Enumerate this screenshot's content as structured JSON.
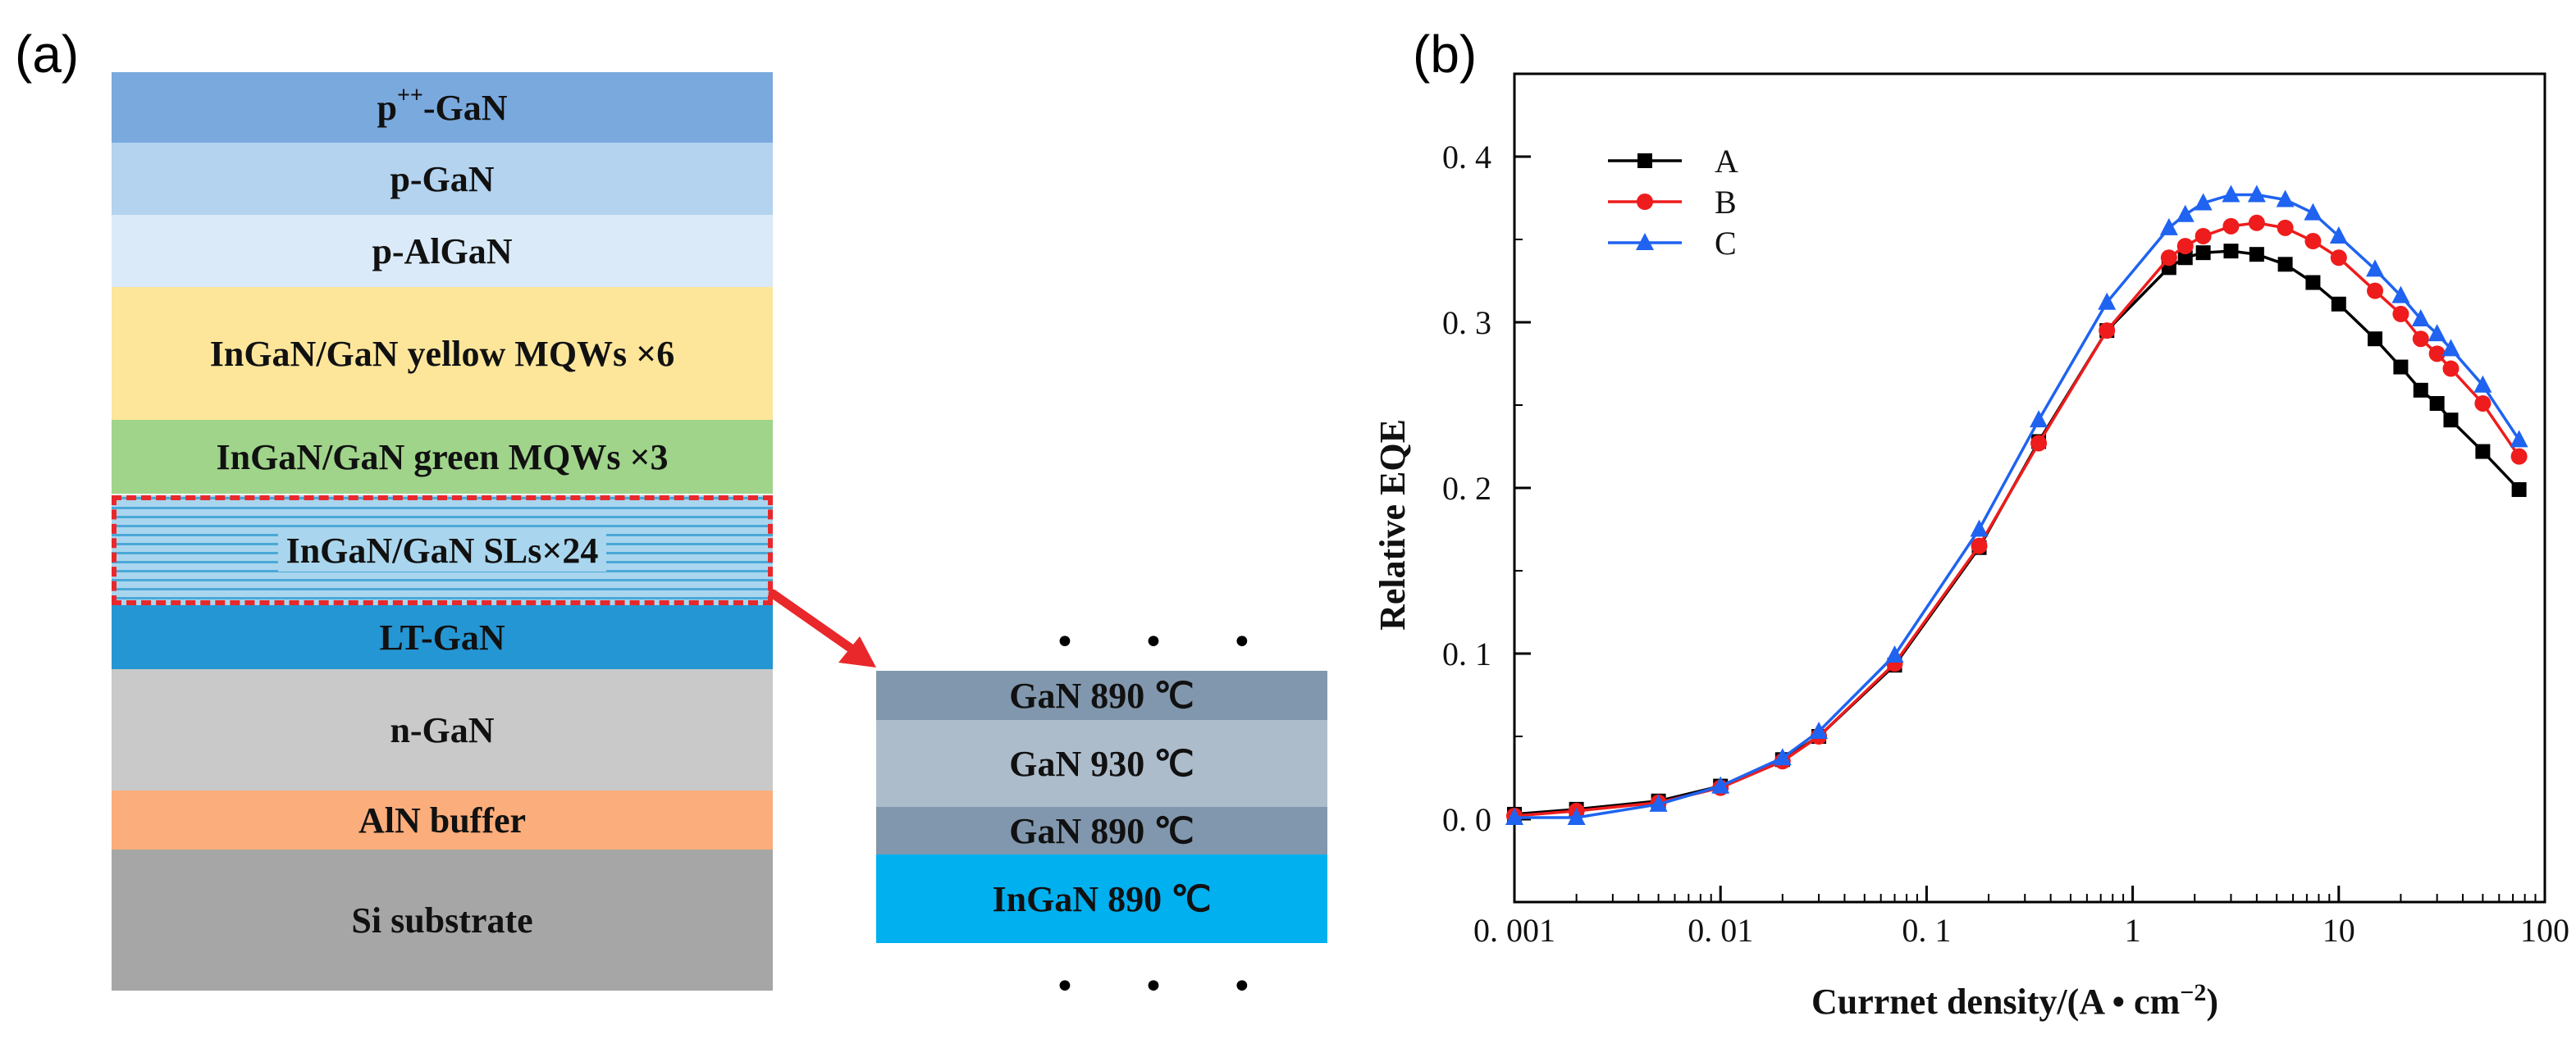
{
  "panel_a": {
    "label": "(a)",
    "layers": [
      {
        "name": "p-GaN-top",
        "base": "p",
        "sup": "++",
        "rest": "-GaN",
        "color": "#7aa9dd"
      },
      {
        "name": "p-GaN",
        "text": "p-GaN",
        "color": "#b3d3ef"
      },
      {
        "name": "p-AlGaN",
        "text": "p-AlGaN",
        "color": "#daeaf8"
      },
      {
        "name": "yellow-mqws",
        "text": "InGaN/GaN yellow MQWs ×6",
        "color": "#fde69a"
      },
      {
        "name": "green-mqws",
        "text": "InGaN/GaN green MQWs ×3",
        "color": "#9fd48a"
      },
      {
        "name": "sls",
        "text": "InGaN/GaN SLs×24",
        "color": "#a9d6ee",
        "stripe_color": "#4ba8d8",
        "highlight_color": "#e8282b"
      },
      {
        "name": "lt-gan",
        "text": "LT-GaN",
        "color": "#2596d4"
      },
      {
        "name": "n-gan",
        "text": "n-GaN",
        "color": "#c9c9c9"
      },
      {
        "name": "aln-buffer",
        "text": "AlN  buffer",
        "color": "#fbad7b"
      },
      {
        "name": "si-substrate",
        "text": "Si  substrate",
        "color": "#a6a6a6"
      }
    ],
    "detail_stack": [
      {
        "text": "GaN  890 ℃",
        "color": "#8197ad"
      },
      {
        "text": "GaN  930 ℃",
        "color": "#adbccb"
      },
      {
        "text": "GaN  890 ℃",
        "color": "#8197ad"
      },
      {
        "text": "InGaN  890 ℃",
        "color": "#00b0ef"
      }
    ],
    "ellipsis": "• • •"
  },
  "panel_b": {
    "label": "(b)"
  },
  "chart_data": {
    "type": "line",
    "xscale": "log",
    "xlim": [
      0.001,
      100
    ],
    "ylim": [
      -0.05,
      0.45
    ],
    "xlabel": "Currnet density/(A • cm",
    "xlabel_sup": "−2",
    "xlabel_end": ")",
    "ylabel": "Relative EQE",
    "xticks": [
      0.001,
      0.01,
      0.1,
      1,
      10,
      100
    ],
    "xtick_labels": [
      "0. 001",
      "0. 01",
      "0. 1",
      "1",
      "10",
      "100"
    ],
    "yticks": [
      0.0,
      0.1,
      0.2,
      0.3,
      0.4
    ],
    "ytick_labels": [
      "0. 0",
      "0. 1",
      "0. 2",
      "0. 3",
      "0. 4"
    ],
    "legend_position": "top-left",
    "series": [
      {
        "name": "A",
        "color": "#000000",
        "marker": "square",
        "x": [
          0.001,
          0.002,
          0.005,
          0.01,
          0.02,
          0.03,
          0.07,
          0.18,
          0.35,
          0.75,
          1.5,
          1.8,
          2.2,
          3,
          4,
          5.5,
          7.5,
          10,
          15,
          20,
          25,
          30,
          35,
          50,
          75
        ],
        "y": [
          0.003,
          0.006,
          0.011,
          0.02,
          0.036,
          0.05,
          0.093,
          0.164,
          0.228,
          0.295,
          0.333,
          0.339,
          0.342,
          0.343,
          0.341,
          0.335,
          0.324,
          0.311,
          0.29,
          0.273,
          0.259,
          0.251,
          0.241,
          0.222,
          0.199
        ]
      },
      {
        "name": "B",
        "color": "#ee1c1c",
        "marker": "circle",
        "x": [
          0.001,
          0.002,
          0.005,
          0.01,
          0.02,
          0.03,
          0.07,
          0.18,
          0.35,
          0.75,
          1.5,
          1.8,
          2.2,
          3,
          4,
          5.5,
          7.5,
          10,
          15,
          20,
          25,
          30,
          35,
          50,
          75
        ],
        "y": [
          0.002,
          0.005,
          0.01,
          0.019,
          0.035,
          0.05,
          0.094,
          0.165,
          0.227,
          0.295,
          0.339,
          0.346,
          0.352,
          0.358,
          0.36,
          0.357,
          0.349,
          0.339,
          0.319,
          0.305,
          0.29,
          0.281,
          0.272,
          0.251,
          0.219
        ]
      },
      {
        "name": "C",
        "color": "#1f63f0",
        "marker": "triangle",
        "x": [
          0.001,
          0.002,
          0.005,
          0.01,
          0.02,
          0.03,
          0.07,
          0.18,
          0.35,
          0.75,
          1.5,
          1.8,
          2.2,
          3,
          4,
          5.5,
          7.5,
          10,
          15,
          20,
          25,
          30,
          35,
          50,
          75
        ],
        "y": [
          0.001,
          0.001,
          0.009,
          0.02,
          0.037,
          0.053,
          0.099,
          0.175,
          0.241,
          0.312,
          0.357,
          0.365,
          0.372,
          0.377,
          0.377,
          0.374,
          0.366,
          0.352,
          0.332,
          0.316,
          0.302,
          0.293,
          0.284,
          0.262,
          0.229
        ]
      }
    ]
  }
}
